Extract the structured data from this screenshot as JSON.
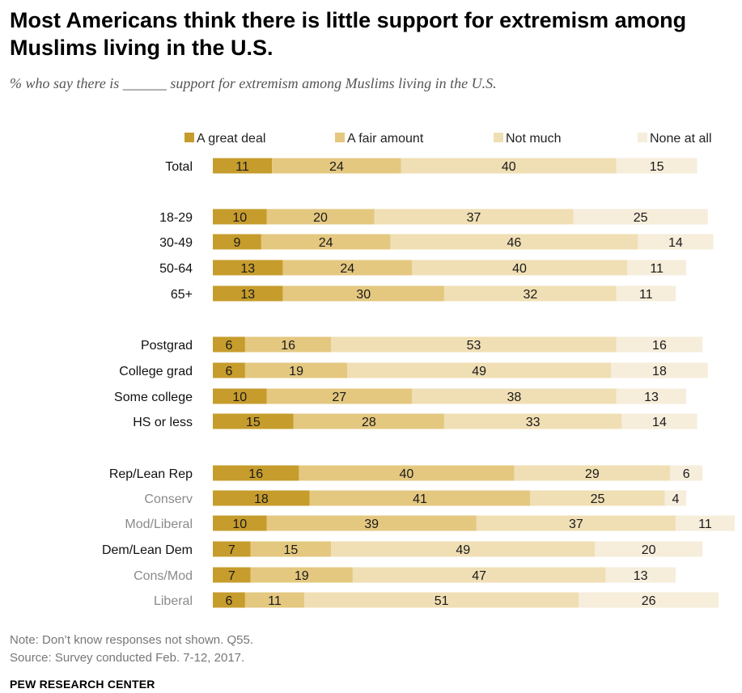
{
  "title": "Most Americans think there is little support for extremism among Muslims living in the U.S.",
  "subtitle": "% who say there is ______ support for extremism among Muslims living in the U.S.",
  "note": "Note: Don’t know responses not shown. Q55.",
  "source": "Source: Survey conducted Feb. 7-12, 2017.",
  "brand": "PEW RESEARCH CENTER",
  "colors": {
    "series": [
      "#c69c2c",
      "#e4c880",
      "#f0dfb4",
      "#f6eddb"
    ],
    "label_dark": "#111111",
    "label_muted": "#8a8a8a"
  },
  "chart_data": {
    "type": "bar",
    "orientation": "horizontal",
    "stacked": true,
    "legend_position": "top",
    "series_names": [
      "A great deal",
      "A fair amount",
      "Not much",
      "None at all"
    ],
    "rows": [
      {
        "label": "Total",
        "values": [
          11,
          24,
          40,
          15
        ],
        "style": "dark"
      },
      {
        "label": "18-29",
        "values": [
          10,
          20,
          37,
          25
        ],
        "style": "dark"
      },
      {
        "label": "30-49",
        "values": [
          9,
          24,
          46,
          14
        ],
        "style": "dark"
      },
      {
        "label": "50-64",
        "values": [
          13,
          24,
          40,
          11
        ],
        "style": "dark"
      },
      {
        "label": "65+",
        "values": [
          13,
          30,
          32,
          11
        ],
        "style": "dark"
      },
      {
        "label": "Postgrad",
        "values": [
          6,
          16,
          53,
          16
        ],
        "style": "dark"
      },
      {
        "label": "College grad",
        "values": [
          6,
          19,
          49,
          18
        ],
        "style": "dark"
      },
      {
        "label": "Some college",
        "values": [
          10,
          27,
          38,
          13
        ],
        "style": "dark"
      },
      {
        "label": "HS or less",
        "values": [
          15,
          28,
          33,
          14
        ],
        "style": "dark"
      },
      {
        "label": "Rep/Lean Rep",
        "values": [
          16,
          40,
          29,
          6
        ],
        "style": "dark"
      },
      {
        "label": "Conserv",
        "values": [
          18,
          41,
          25,
          4
        ],
        "style": "muted"
      },
      {
        "label": "Mod/Liberal",
        "values": [
          10,
          39,
          37,
          11
        ],
        "style": "muted"
      },
      {
        "label": "Dem/Lean Dem",
        "values": [
          7,
          15,
          49,
          20
        ],
        "style": "dark"
      },
      {
        "label": "Cons/Mod",
        "values": [
          7,
          19,
          47,
          13
        ],
        "style": "muted"
      },
      {
        "label": "Liberal",
        "values": [
          6,
          11,
          51,
          26
        ],
        "style": "muted"
      }
    ]
  }
}
